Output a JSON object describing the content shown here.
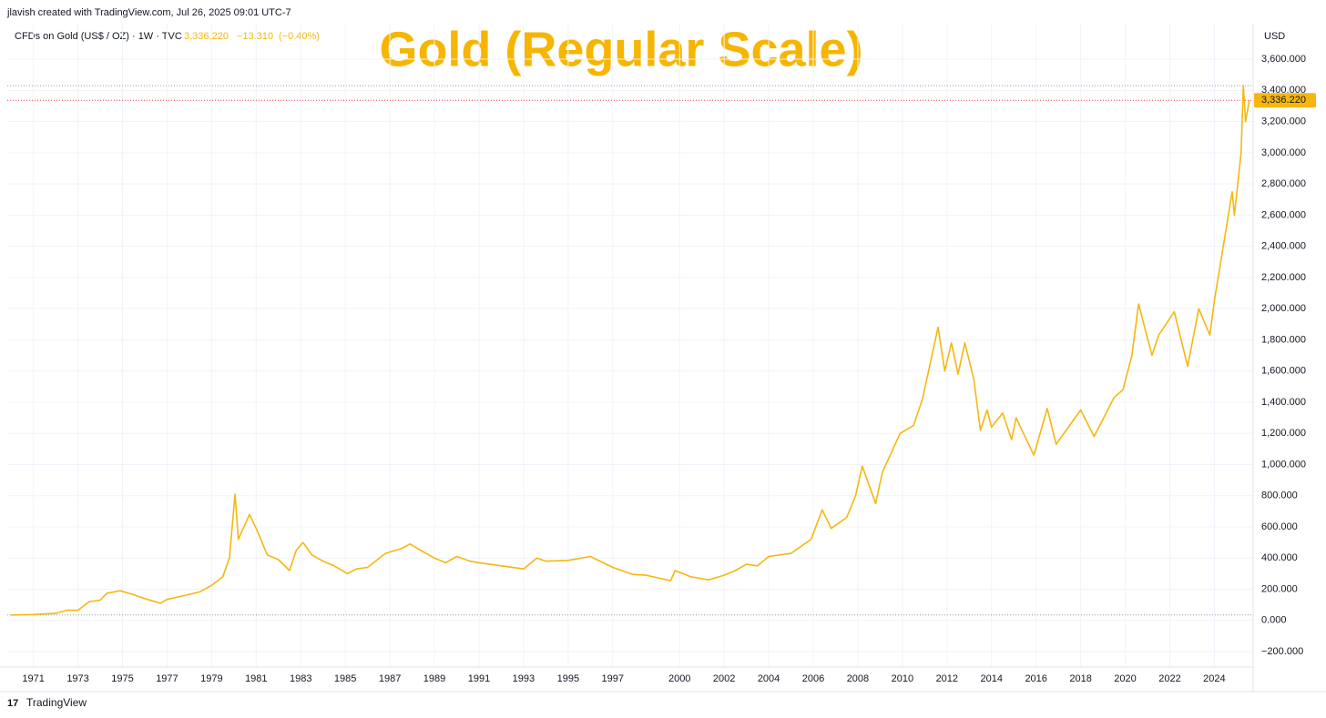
{
  "header": {
    "attribution": "jlavish created with TradingView.com, Jul 26, 2025 09:01 UTC-7",
    "symbol": "CFDs on Gold (US$ / OZ) · 1W · TVC",
    "last_price": {
      "value": 3336.22,
      "label": "3,336.220"
    },
    "change": {
      "value": -13.31,
      "label": "−13.310"
    },
    "change_pct": {
      "value": -0.4,
      "label": "(−0.40%)"
    }
  },
  "footer": {
    "brand": "TradingView"
  },
  "chart_data": {
    "type": "line",
    "title": "Gold (Regular Scale)",
    "y_axis_label": "USD",
    "x": [
      1970.0,
      1971.0,
      1972.0,
      1972.5,
      1973.0,
      1973.5,
      1974.0,
      1974.3,
      1974.9,
      1975.5,
      1976.0,
      1976.7,
      1977.0,
      1977.8,
      1978.5,
      1979.0,
      1979.5,
      1979.8,
      1980.05,
      1980.2,
      1980.7,
      1981.0,
      1981.5,
      1982.0,
      1982.5,
      1982.8,
      1983.1,
      1983.5,
      1984.0,
      1984.5,
      1985.1,
      1985.5,
      1986.0,
      1986.8,
      1987.5,
      1987.9,
      1988.5,
      1989.0,
      1989.5,
      1990.0,
      1990.6,
      1991.0,
      1992.0,
      1993.0,
      1993.6,
      1994.0,
      1995.0,
      1996.0,
      1997.0,
      1997.9,
      1998.5,
      1999.6,
      1999.8,
      2000.5,
      2001.3,
      2002.0,
      2002.5,
      2003.0,
      2003.5,
      2004.0,
      2005.0,
      2005.9,
      2006.4,
      2006.8,
      2007.5,
      2007.9,
      2008.2,
      2008.8,
      2009.1,
      2009.9,
      2010.5,
      2010.9,
      2011.6,
      2011.9,
      2012.2,
      2012.5,
      2012.8,
      2013.2,
      2013.5,
      2013.8,
      2014.0,
      2014.5,
      2014.9,
      2015.1,
      2015.9,
      2016.5,
      2016.9,
      2017.5,
      2018.0,
      2018.6,
      2019.0,
      2019.5,
      2019.9,
      2020.3,
      2020.6,
      2021.2,
      2021.5,
      2022.2,
      2022.8,
      2023.3,
      2023.8,
      2024.0,
      2024.4,
      2024.8,
      2024.9,
      2025.2,
      2025.3,
      2025.4,
      2025.57
    ],
    "series": [
      {
        "name": "CFDs on Gold (US$ / OZ)",
        "color": "#f5b70f",
        "values": [
          35,
          38,
          45,
          65,
          65,
          120,
          130,
          175,
          190,
          165,
          140,
          110,
          135,
          160,
          185,
          225,
          280,
          400,
          810,
          520,
          680,
          590,
          420,
          390,
          320,
          450,
          500,
          420,
          380,
          350,
          300,
          330,
          340,
          430,
          460,
          490,
          440,
          400,
          370,
          410,
          380,
          370,
          350,
          330,
          400,
          380,
          385,
          410,
          340,
          295,
          290,
          255,
          320,
          280,
          260,
          290,
          320,
          360,
          350,
          410,
          430,
          520,
          710,
          590,
          660,
          800,
          990,
          750,
          950,
          1200,
          1250,
          1420,
          1880,
          1600,
          1780,
          1580,
          1780,
          1550,
          1220,
          1350,
          1240,
          1330,
          1160,
          1300,
          1060,
          1360,
          1130,
          1250,
          1350,
          1180,
          1290,
          1430,
          1480,
          1700,
          2030,
          1700,
          1830,
          1980,
          1630,
          2000,
          1830,
          2050,
          2400,
          2750,
          2600,
          3000,
          3430,
          3200,
          3336.22
        ]
      }
    ],
    "xlim": [
      1969.83,
      2025.74
    ],
    "xticks": [
      1971,
      1973,
      1975,
      1977,
      1979,
      1981,
      1983,
      1985,
      1987,
      1989,
      1991,
      1993,
      1995,
      1997,
      2000,
      2002,
      2004,
      2006,
      2008,
      2010,
      2012,
      2014,
      2016,
      2018,
      2020,
      2022,
      2024
    ],
    "ylim": [
      -299,
      3828
    ],
    "yticks": [
      {
        "value": -200,
        "label": "−200.000"
      },
      {
        "value": 0,
        "label": "0.000"
      },
      {
        "value": 200,
        "label": "200.000"
      },
      {
        "value": 400,
        "label": "400.000"
      },
      {
        "value": 600,
        "label": "600.000"
      },
      {
        "value": 800,
        "label": "800.000"
      },
      {
        "value": 1000,
        "label": "1,000.000"
      },
      {
        "value": 1200,
        "label": "1,200.000"
      },
      {
        "value": 1400,
        "label": "1,400.000"
      },
      {
        "value": 1600,
        "label": "1,600.000"
      },
      {
        "value": 1800,
        "label": "1,800.000"
      },
      {
        "value": 2000,
        "label": "2,000.000"
      },
      {
        "value": 2200,
        "label": "2,200.000"
      },
      {
        "value": 2400,
        "label": "2,400.000"
      },
      {
        "value": 2600,
        "label": "2,600.000"
      },
      {
        "value": 2800,
        "label": "2,800.000"
      },
      {
        "value": 3000,
        "label": "3,000.000"
      },
      {
        "value": 3200,
        "label": "3,200.000"
      },
      {
        "value": 3400,
        "label": "3,400.000"
      },
      {
        "value": 3600,
        "label": "3,600.000"
      }
    ],
    "grid": true
  }
}
